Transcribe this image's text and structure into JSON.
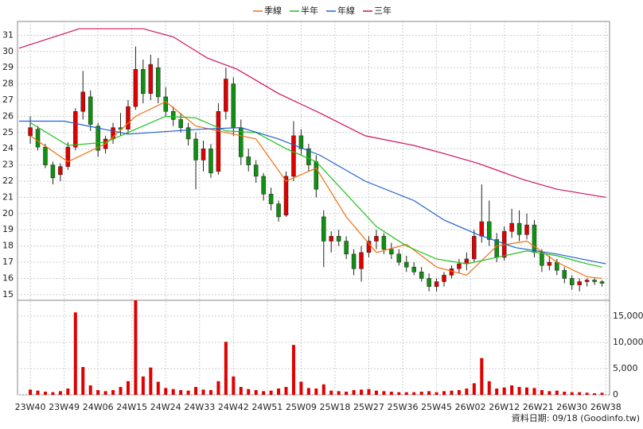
{
  "chart_data": {
    "type": "candlestick",
    "x": [
      0,
      2,
      4,
      6,
      8,
      10,
      12,
      14,
      16,
      18,
      20,
      22,
      24,
      26,
      28,
      30,
      32,
      34,
      36,
      38,
      40,
      42,
      44,
      46,
      48,
      50,
      52,
      54,
      56,
      58,
      60,
      62,
      64,
      66,
      68,
      70,
      72,
      74,
      76,
      78,
      80,
      82,
      84,
      86,
      88,
      90,
      92,
      94,
      96,
      98,
      100,
      102,
      104,
      106,
      108,
      110,
      112,
      114,
      116,
      118,
      120,
      122,
      124,
      126,
      128,
      130,
      132,
      134,
      136,
      138,
      140,
      142,
      144,
      146,
      148,
      150,
      152
    ],
    "open": [
      24.8,
      25.2,
      24.1,
      23.0,
      22.4,
      22.9,
      24.1,
      26.3,
      27.2,
      25.4,
      24.0,
      24.6,
      25.3,
      25.2,
      26.6,
      28.9,
      27.4,
      29.0,
      27.2,
      26.3,
      25.8,
      25.3,
      24.6,
      23.3,
      24.0,
      22.6,
      26.3,
      28.0,
      25.3,
      23.5,
      23.0,
      22.3,
      21.2,
      20.6,
      19.9,
      22.3,
      24.8,
      24.0,
      23.2,
      19.8,
      18.3,
      18.6,
      18.3,
      17.5,
      16.6,
      17.6,
      18.3,
      18.6,
      17.8,
      17.5,
      17.0,
      16.7,
      16.4,
      16.0,
      15.5,
      15.8,
      16.2,
      16.6,
      16.9,
      17.2,
      18.6,
      19.5,
      18.4,
      17.3,
      18.9,
      19.4,
      18.7,
      19.3,
      17.6,
      16.8,
      17.0,
      16.5,
      16.0,
      15.6,
      15.8,
      15.9,
      15.8
    ],
    "high": [
      26.0,
      25.4,
      24.3,
      23.2,
      23.1,
      24.4,
      26.5,
      28.8,
      27.6,
      25.6,
      24.8,
      25.6,
      26.2,
      27.0,
      30.3,
      29.5,
      29.8,
      29.6,
      27.8,
      26.6,
      26.2,
      25.6,
      25.0,
      24.5,
      24.3,
      26.8,
      29.0,
      28.4,
      25.8,
      24.0,
      23.3,
      22.5,
      21.6,
      20.8,
      22.6,
      25.7,
      25.2,
      24.3,
      23.6,
      20.2,
      18.9,
      19.0,
      18.6,
      17.8,
      18.0,
      18.6,
      19.0,
      18.8,
      18.2,
      17.8,
      17.4,
      17.0,
      16.7,
      16.3,
      16.0,
      16.4,
      16.8,
      17.2,
      17.6,
      19.0,
      21.8,
      20.8,
      18.8,
      19.2,
      20.3,
      20.2,
      20.0,
      19.6,
      17.8,
      17.4,
      17.2,
      16.7,
      16.2,
      16.0,
      16.0,
      16.0,
      15.9
    ],
    "low": [
      24.3,
      23.9,
      22.8,
      21.8,
      22.0,
      22.7,
      23.9,
      25.8,
      25.1,
      23.5,
      23.7,
      24.3,
      24.8,
      24.9,
      26.4,
      26.8,
      27.0,
      26.8,
      26.0,
      25.4,
      25.0,
      24.2,
      21.5,
      22.6,
      22.2,
      22.4,
      25.8,
      24.8,
      23.0,
      22.6,
      21.9,
      20.8,
      20.2,
      19.5,
      19.8,
      22.0,
      23.6,
      22.6,
      21.0,
      16.7,
      17.6,
      18.0,
      17.2,
      16.2,
      15.8,
      17.3,
      17.8,
      17.5,
      17.2,
      16.8,
      16.4,
      16.2,
      15.8,
      15.2,
      15.2,
      15.5,
      16.0,
      16.3,
      16.5,
      17.0,
      18.2,
      18.0,
      17.0,
      17.1,
      18.5,
      18.3,
      18.4,
      17.3,
      16.4,
      16.5,
      16.2,
      15.7,
      15.3,
      15.2,
      15.5,
      15.6,
      15.5
    ],
    "close": [
      25.3,
      24.1,
      23.0,
      22.2,
      22.9,
      24.1,
      26.3,
      27.5,
      25.5,
      23.9,
      24.6,
      25.3,
      25.2,
      26.6,
      28.9,
      27.4,
      29.2,
      27.2,
      26.3,
      25.8,
      25.3,
      24.6,
      23.3,
      24.0,
      22.5,
      26.3,
      28.3,
      25.3,
      23.5,
      23.0,
      22.3,
      21.2,
      20.6,
      19.8,
      22.3,
      24.8,
      24.0,
      23.0,
      21.5,
      18.3,
      18.6,
      18.3,
      17.5,
      16.6,
      17.6,
      18.3,
      18.6,
      17.8,
      17.5,
      17.0,
      16.7,
      16.4,
      16.0,
      15.5,
      15.8,
      16.2,
      16.6,
      16.9,
      17.2,
      18.6,
      19.5,
      18.4,
      17.3,
      18.9,
      19.4,
      18.7,
      19.3,
      17.6,
      16.8,
      17.0,
      16.5,
      16.0,
      15.6,
      15.8,
      15.9,
      15.8,
      15.7
    ],
    "up_color": "#e00000",
    "down_color": "#109010",
    "xlim": [
      -3.4,
      154
    ],
    "xticks": [
      {
        "value": 0,
        "label": "23W40"
      },
      {
        "value": 9,
        "label": "23W49"
      },
      {
        "value": 18,
        "label": "24W06"
      },
      {
        "value": 27,
        "label": "24W15"
      },
      {
        "value": 36,
        "label": "24W24"
      },
      {
        "value": 45,
        "label": "24W33"
      },
      {
        "value": 54,
        "label": "24W42"
      },
      {
        "value": 63,
        "label": "24W51"
      },
      {
        "value": 72,
        "label": "25W09"
      },
      {
        "value": 81,
        "label": "25W18"
      },
      {
        "value": 90,
        "label": "25W27"
      },
      {
        "value": 99,
        "label": "25W36"
      },
      {
        "value": 108,
        "label": "25W45"
      },
      {
        "value": 117,
        "label": "26W02"
      },
      {
        "value": 126,
        "label": "26W12"
      },
      {
        "value": 135,
        "label": "26W21"
      },
      {
        "value": 144,
        "label": "26W30"
      },
      {
        "value": 153,
        "label": "26W38"
      }
    ],
    "ylim": [
      14.65,
      31.85
    ],
    "yticks": [
      15,
      16,
      17,
      18,
      19,
      20,
      21,
      22,
      23,
      24,
      25,
      26,
      27,
      28,
      29,
      30,
      31
    ],
    "grid": true,
    "volume": {
      "color": "#e00000",
      "values": [
        1000,
        800,
        600,
        500,
        700,
        1200,
        15700,
        5300,
        1800,
        900,
        700,
        900,
        1500,
        2600,
        18000,
        3500,
        5200,
        2500,
        1300,
        1100,
        900,
        800,
        1500,
        1000,
        900,
        2600,
        10100,
        3500,
        1500,
        1100,
        900,
        700,
        800,
        1200,
        1500,
        9500,
        2500,
        1300,
        1200,
        2000,
        800,
        700,
        600,
        900,
        1000,
        1100,
        800,
        700,
        600,
        500,
        500,
        500,
        600,
        700,
        500,
        700,
        800,
        900,
        1200,
        2200,
        7000,
        2600,
        1200,
        1400,
        1800,
        1500,
        1400,
        1300,
        900,
        700,
        800,
        600,
        500,
        500,
        400,
        300,
        400
      ],
      "ylim": [
        0,
        18000
      ],
      "yticks": [
        0,
        {
          "value": 5000,
          "label": "5,000"
        },
        {
          "value": 10000,
          "label": "10,000"
        },
        {
          "value": 15000,
          "label": "15,000"
        }
      ]
    },
    "series": [
      {
        "name": "季線",
        "color": "#f07010",
        "x": [
          0,
          10,
          20,
          28,
          36,
          44,
          52,
          60,
          68,
          76,
          84,
          92,
          100,
          108,
          116,
          124,
          132,
          140,
          148,
          152
        ],
        "values": [
          24.8,
          23.2,
          24.3,
          26.0,
          26.9,
          25.4,
          25.0,
          24.6,
          22.0,
          22.8,
          19.8,
          17.6,
          18.1,
          16.7,
          16.2,
          18.0,
          18.3,
          17.0,
          16.1,
          16.0
        ]
      },
      {
        "name": "半年",
        "color": "#20c020",
        "x": [
          0,
          10,
          20,
          28,
          36,
          44,
          52,
          60,
          68,
          76,
          84,
          92,
          100,
          108,
          116,
          124,
          132,
          140,
          148,
          152
        ],
        "values": [
          25.6,
          24.2,
          24.4,
          25.2,
          26.0,
          25.9,
          25.1,
          25.0,
          24.0,
          23.2,
          21.2,
          19.2,
          18.0,
          17.2,
          16.9,
          17.3,
          17.7,
          17.4,
          16.9,
          16.7
        ]
      },
      {
        "name": "年線",
        "color": "#2060d0",
        "x": [
          -3,
          9,
          26,
          45,
          56,
          66,
          77,
          89,
          102,
          110,
          119,
          129,
          140,
          153
        ],
        "values": [
          25.7,
          25.7,
          24.9,
          25.2,
          25.3,
          24.6,
          23.6,
          22.0,
          20.8,
          19.6,
          18.7,
          17.9,
          17.5,
          16.9
        ]
      },
      {
        "name": "三年",
        "color": "#d01060",
        "x": [
          -3,
          13,
          30,
          38,
          47,
          55,
          66,
          77,
          89,
          102,
          110,
          119,
          131,
          140,
          153
        ],
        "values": [
          30.2,
          31.4,
          31.4,
          30.9,
          29.6,
          28.9,
          27.4,
          26.2,
          24.8,
          24.2,
          23.7,
          23.1,
          22.1,
          21.5,
          21.0
        ]
      }
    ]
  },
  "footer": {
    "text": "資料日期: 09/18 (Goodinfo.tw)"
  }
}
